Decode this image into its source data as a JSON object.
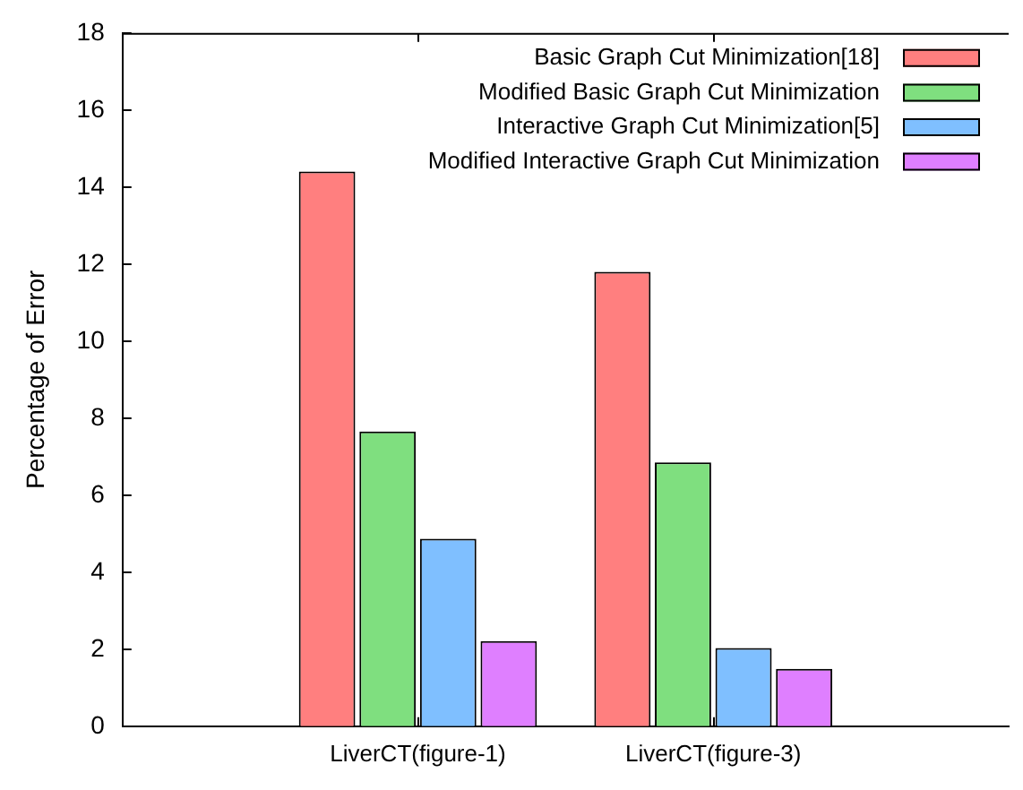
{
  "chart_data": {
    "type": "bar",
    "ylabel": "Percentage of Error",
    "categories": [
      "LiverCT(figure-1)",
      "LiverCT(figure-3)"
    ],
    "ylim": [
      0,
      18
    ],
    "yticks": [
      0,
      2,
      4,
      6,
      8,
      10,
      12,
      14,
      16,
      18
    ],
    "grid": false,
    "legend": "top right",
    "series": [
      {
        "name": "Basic Graph Cut Minimization[18]",
        "color": "#ff7f7f",
        "values": [
          14.4,
          11.8
        ]
      },
      {
        "name": "Modified Basic Graph Cut Minimization",
        "color": "#7fdf7f",
        "values": [
          7.65,
          6.85
        ]
      },
      {
        "name": "Interactive Graph Cut Minimization[5]",
        "color": "#7fbfff",
        "values": [
          4.87,
          2.03
        ]
      },
      {
        "name": "Modified Interactive Graph Cut Minimization",
        "color": "#df7fff",
        "values": [
          2.21,
          1.49
        ]
      }
    ]
  }
}
